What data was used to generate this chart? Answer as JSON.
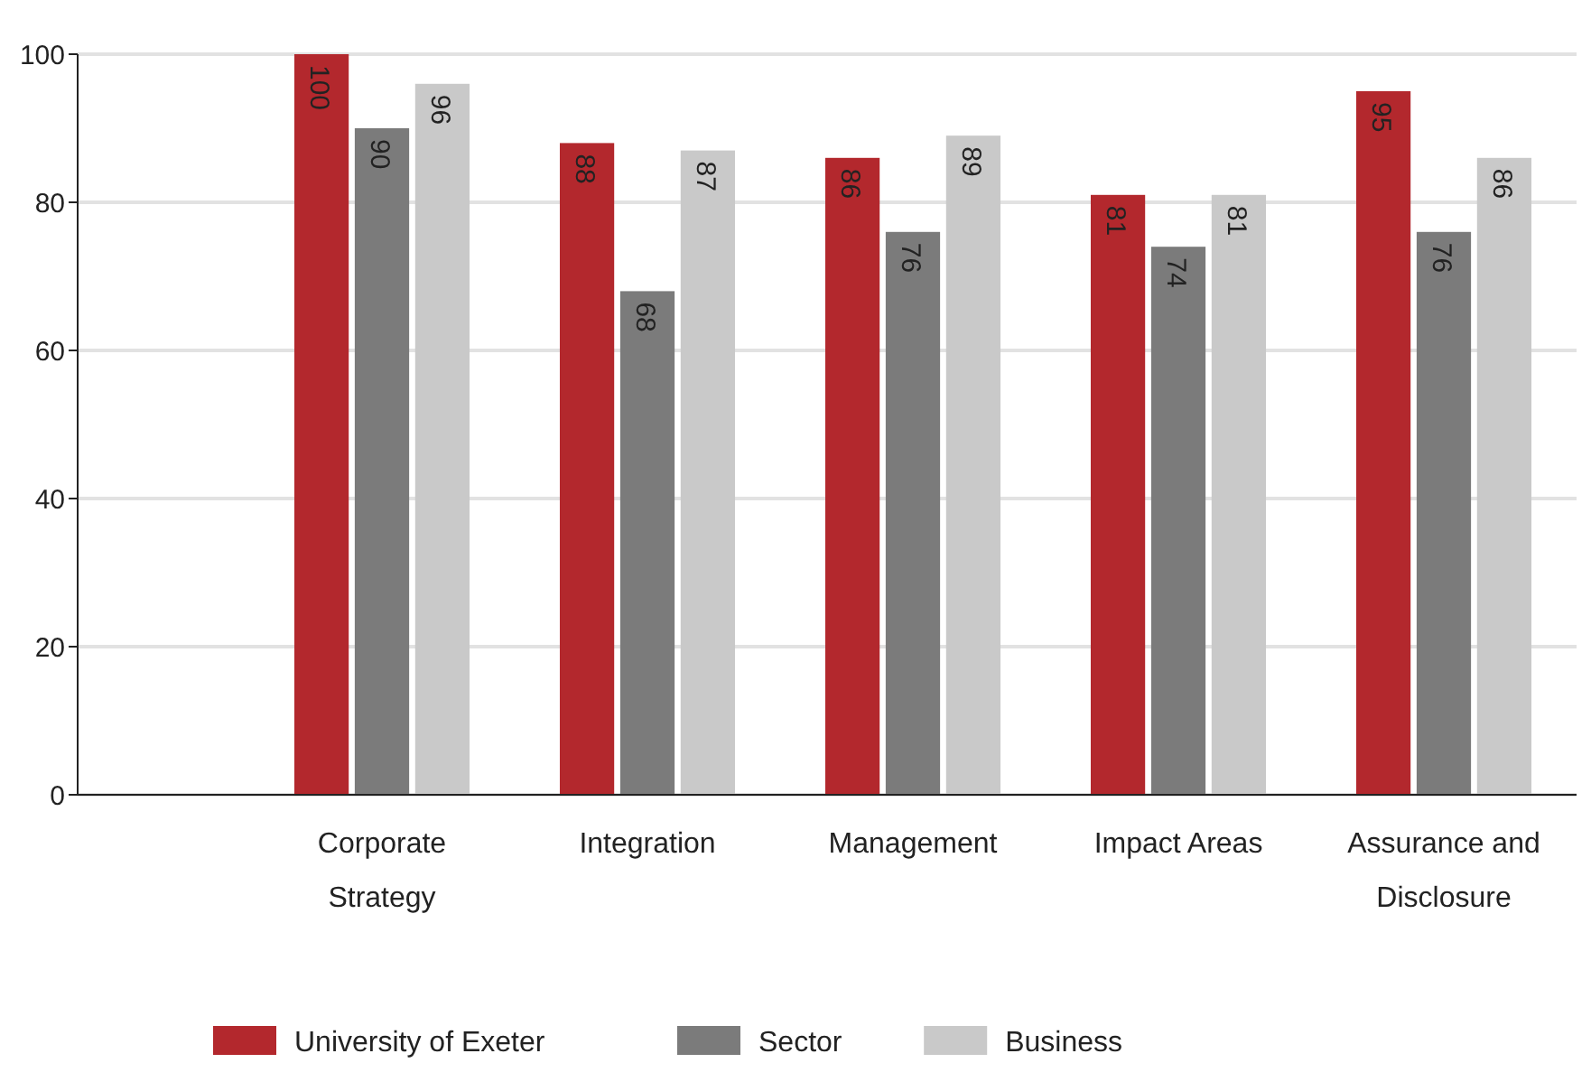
{
  "chart_data": {
    "type": "bar",
    "categories": [
      "Corporate Strategy",
      "Integration",
      "Management",
      "Impact Areas",
      "Assurance and Disclosure"
    ],
    "series": [
      {
        "name": "University of Exeter",
        "color": "#b3282d",
        "values": [
          100,
          88,
          86,
          81,
          95
        ]
      },
      {
        "name": "Sector",
        "color": "#7b7b7b",
        "values": [
          90,
          68,
          76,
          74,
          76
        ]
      },
      {
        "name": "Business",
        "color": "#c9c9c9",
        "values": [
          96,
          87,
          89,
          81,
          86
        ]
      }
    ],
    "ylim": [
      0,
      100
    ],
    "yticks": [
      0,
      20,
      40,
      60,
      80,
      100
    ],
    "grid": "y",
    "legend": "bottom left",
    "data_labels": true
  }
}
